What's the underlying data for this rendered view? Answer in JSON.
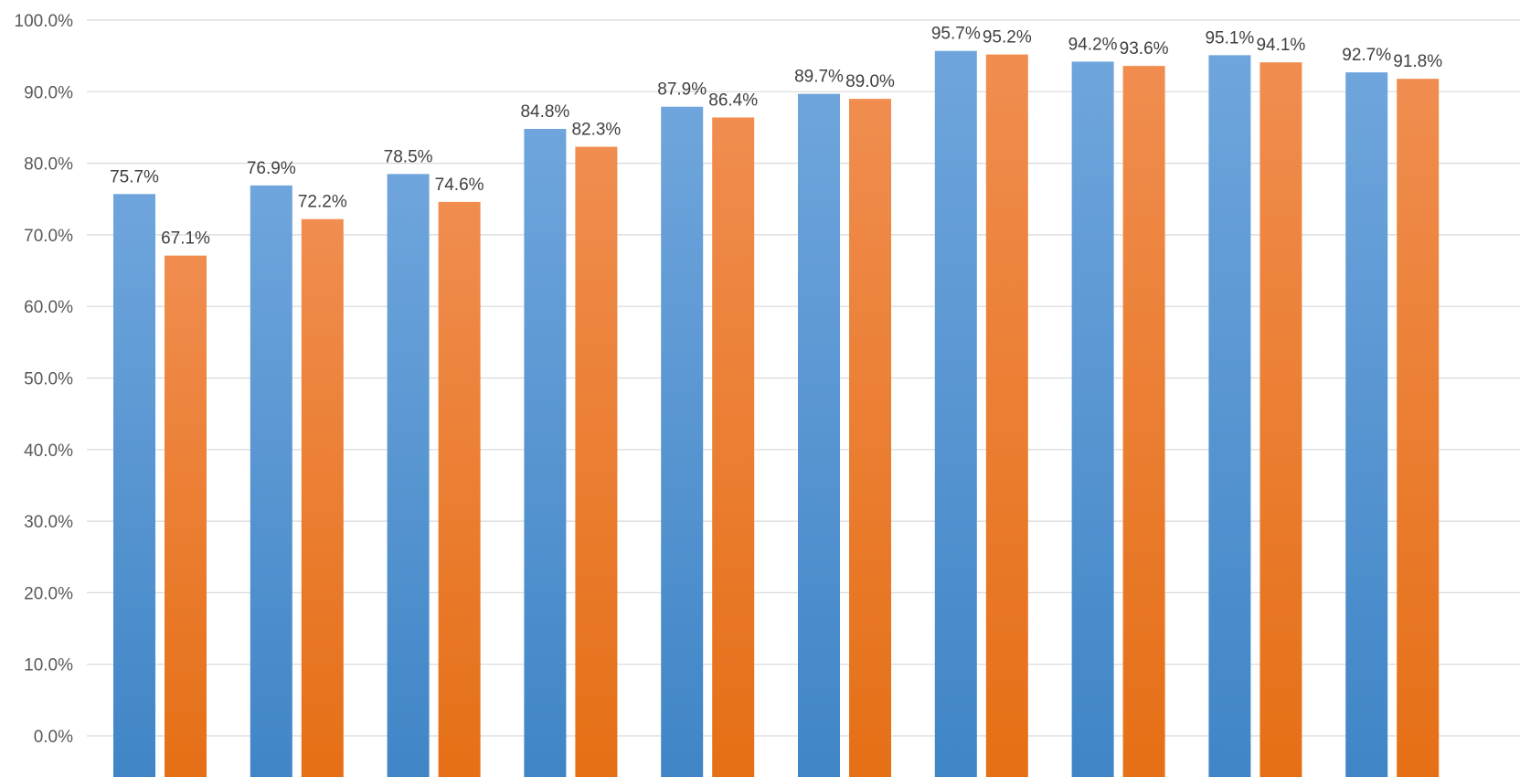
{
  "chart_data": {
    "type": "bar",
    "categories": [
      "",
      "",
      "",
      "",
      "",
      "",
      "",
      "",
      "",
      ""
    ],
    "series": [
      {
        "values": [
          75.7,
          76.9,
          78.5,
          84.8,
          87.9,
          89.7,
          95.7,
          94.2,
          95.1,
          92.7
        ],
        "labels": [
          "75.7%",
          "76.9%",
          "78.5%",
          "84.8%",
          "87.9%",
          "89.7%",
          "95.7%",
          "94.2%",
          "95.1%",
          "92.7%"
        ],
        "color": "#5b9bd5"
      },
      {
        "values": [
          67.1,
          72.2,
          74.6,
          82.3,
          86.4,
          89.0,
          95.2,
          93.6,
          94.1,
          91.8
        ],
        "labels": [
          "67.1%",
          "72.2%",
          "74.6%",
          "82.3%",
          "86.4%",
          "89.0%",
          "95.2%",
          "93.6%",
          "94.1%",
          "91.8%"
        ],
        "color": "#ed7d31"
      }
    ],
    "ylim": [
      0,
      100
    ],
    "yticks": [
      "0.0%",
      "10.0%",
      "20.0%",
      "30.0%",
      "40.0%",
      "50.0%",
      "60.0%",
      "70.0%",
      "80.0%",
      "90.0%",
      "100.0%"
    ],
    "grid": true,
    "legend": "none"
  }
}
